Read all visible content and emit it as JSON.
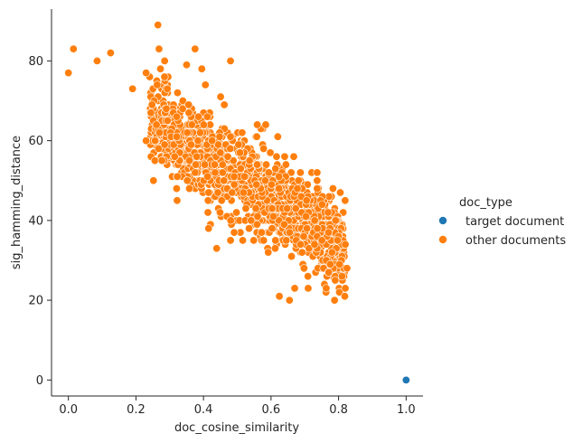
{
  "chart_data": {
    "type": "scatter",
    "title": "",
    "xlabel": "doc_cosine_similarity",
    "ylabel": "sig_hamming_distance",
    "xlim": [
      -0.05,
      1.05
    ],
    "ylim": [
      -4,
      93
    ],
    "xticks": [
      "0.0",
      "0.2",
      "0.4",
      "0.6",
      "0.8",
      "1.0"
    ],
    "yticks": [
      "0",
      "20",
      "40",
      "60",
      "80"
    ],
    "grid": false,
    "legend": {
      "title": "doc_type",
      "placement": "center-right, outside plot"
    },
    "series": [
      {
        "name": "target document",
        "color": "#1f77b4",
        "points": [
          [
            1.0,
            0
          ]
        ]
      },
      {
        "name": "other documents",
        "color": "#ff7f0e",
        "outliers": [
          [
            0.0,
            77
          ],
          [
            0.015,
            83
          ],
          [
            0.085,
            80
          ],
          [
            0.125,
            82
          ],
          [
            0.19,
            73
          ],
          [
            0.23,
            77
          ],
          [
            0.265,
            89
          ],
          [
            0.285,
            80
          ],
          [
            0.375,
            83
          ],
          [
            0.395,
            78
          ],
          [
            0.48,
            80
          ],
          [
            0.23,
            60
          ],
          [
            0.35,
            79
          ],
          [
            0.415,
            38
          ],
          [
            0.71,
            23
          ],
          [
            0.67,
            23
          ],
          [
            0.62,
            61
          ],
          [
            0.79,
            25
          ],
          [
            0.82,
            34
          ],
          [
            0.825,
            28
          ]
        ],
        "band": {
          "description": "dense cloud of points along a negative linear trend",
          "x_range": [
            0.24,
            0.82
          ],
          "y_at_x_low": 66,
          "y_at_x_high": 33,
          "y_spread": 10,
          "approx_point_count": 1400
        }
      }
    ]
  }
}
